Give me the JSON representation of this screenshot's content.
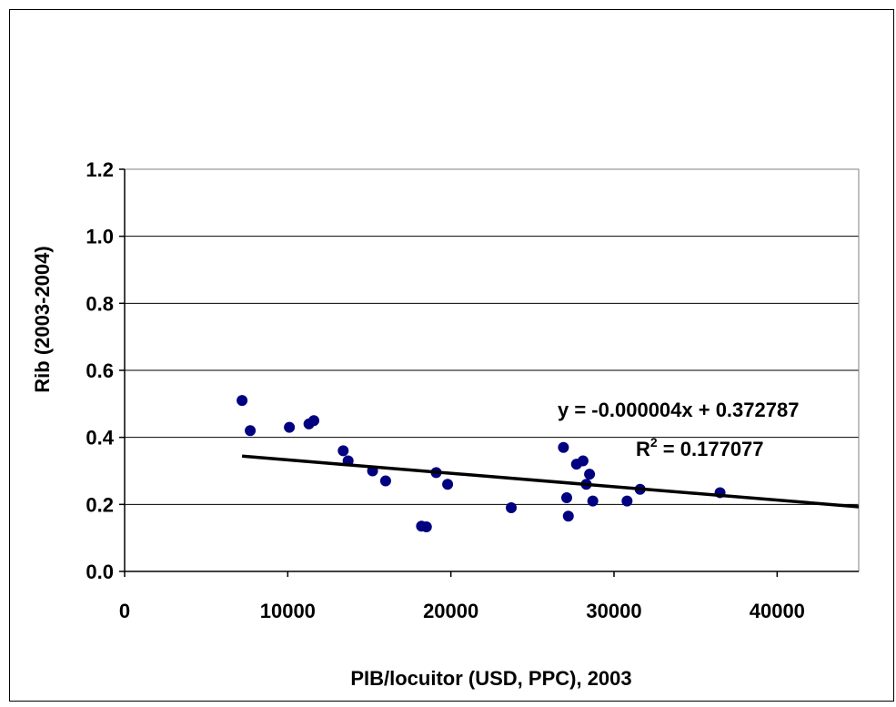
{
  "chart_data": {
    "type": "scatter",
    "title": "",
    "xlabel": "PIB/locuitor (USD, PPC), 2003",
    "ylabel": "Rib (2003-2004)",
    "xlim": [
      0,
      45000
    ],
    "ylim": [
      0,
      1.2
    ],
    "x_ticks": [
      0,
      10000,
      20000,
      30000,
      40000
    ],
    "x_tick_labels": [
      "0",
      "10000",
      "20000",
      "30000",
      "40000"
    ],
    "y_ticks": [
      0,
      0.2,
      0.4,
      0.6,
      0.8,
      1.0,
      1.2
    ],
    "y_tick_labels": [
      "0.0",
      "0.2",
      "0.4",
      "0.6",
      "0.8",
      "1.0",
      "1.2"
    ],
    "grid": "horizontal",
    "legend": "none",
    "marker_color": "#000080",
    "trendline_color": "#000000",
    "x": [
      7200,
      7700,
      10100,
      11300,
      11600,
      13400,
      13700,
      15200,
      16000,
      18200,
      18500,
      19100,
      19800,
      23700,
      26900,
      27100,
      27200,
      27700,
      28100,
      28300,
      28500,
      28700,
      30800,
      31600,
      36500
    ],
    "y": [
      0.51,
      0.42,
      0.43,
      0.44,
      0.45,
      0.36,
      0.33,
      0.3,
      0.27,
      0.135,
      0.133,
      0.295,
      0.26,
      0.19,
      0.37,
      0.22,
      0.165,
      0.32,
      0.33,
      0.26,
      0.29,
      0.21,
      0.21,
      0.245,
      0.235
    ],
    "trendline": {
      "slope": -4e-06,
      "intercept": 0.372787,
      "x_range": [
        7200,
        45000
      ],
      "equation": "y = -0.000004x + 0.372787",
      "r2_label": "R",
      "r2_sup": "2",
      "r2_value": " = 0.177077"
    }
  }
}
